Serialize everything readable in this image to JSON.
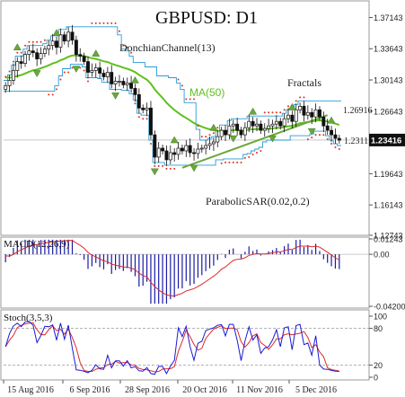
{
  "chart_data": [
    {
      "type": "candlestick",
      "title": "GBPUSD: D1",
      "instrument": "GBPUSD",
      "timeframe": "D1",
      "ylim": [
        1.1274,
        1.39
      ],
      "y_ticks": [
        "1.37143",
        "1.33643",
        "1.30143",
        "1.26643",
        "1.23143",
        "1.19643",
        "1.16143",
        "1.12743"
      ],
      "current_price_label": "1.23416",
      "current_price": 1.23416,
      "annotations": [
        {
          "text": "DonchianChannel(13)"
        },
        {
          "text": "MA(50)",
          "color": "#5fc01e"
        },
        {
          "text": "Fractals"
        },
        {
          "text": "ParabolicSAR(0.02,0.2)"
        },
        {
          "text": "1.26916",
          "value": 1.26916
        },
        {
          "text": "1.2311",
          "value": 1.2311
        }
      ],
      "x_labels": [
        "15 Aug 2016",
        "6 Sep 2016",
        "28 Sep 2016",
        "20 Oct 2016",
        "11 Nov 2016",
        "5 Dec 2016"
      ],
      "close_approx": [
        1.295,
        1.301,
        1.312,
        1.322,
        1.32,
        1.33,
        1.334,
        1.332,
        1.325,
        1.331,
        1.336,
        1.34,
        1.345,
        1.338,
        1.352,
        1.345,
        1.355,
        1.346,
        1.33,
        1.328,
        1.322,
        1.31,
        1.312,
        1.315,
        1.309,
        1.305,
        1.31,
        1.297,
        1.3,
        1.3,
        1.296,
        1.298,
        1.292,
        1.285,
        1.27,
        1.268,
        1.27,
        1.24,
        1.215,
        1.225,
        1.222,
        1.212,
        1.22,
        1.218,
        1.225,
        1.222,
        1.228,
        1.22,
        1.219,
        1.224,
        1.225,
        1.228,
        1.23,
        1.232,
        1.238,
        1.245,
        1.24,
        1.25,
        1.252,
        1.245,
        1.24,
        1.248,
        1.255,
        1.25,
        1.252,
        1.245,
        1.247,
        1.25,
        1.252,
        1.255,
        1.25,
        1.258,
        1.262,
        1.255,
        1.268,
        1.272,
        1.262,
        1.265,
        1.26,
        1.268,
        1.26,
        1.25,
        1.245,
        1.24,
        1.236,
        1.234
      ],
      "series": [
        {
          "name": "MA(50)",
          "color": "#5fc01e"
        },
        {
          "name": "DonchianChannel(13)",
          "color": "#2a9ad6"
        },
        {
          "name": "ParabolicSAR(0.02,0.2)",
          "color": "#e0321e"
        },
        {
          "name": "Fractals",
          "color": "#6aa83a"
        }
      ]
    },
    {
      "type": "bar",
      "title": "MACD(12,26,9)",
      "ylim": [
        -0.042,
        0.01243
      ],
      "y_ticks": [
        "0.01243",
        "0.00",
        "-0.04200"
      ],
      "series": [
        {
          "name": "MACD",
          "color": "#1a1aa6"
        },
        {
          "name": "Signal",
          "color": "#e02828"
        }
      ]
    },
    {
      "type": "line",
      "title": "Stoch(3,5,3)",
      "ylim": [
        0,
        100
      ],
      "y_ticks": [
        "100",
        "80",
        "20",
        "0"
      ],
      "levels": [
        80,
        20
      ],
      "series": [
        {
          "name": "%K",
          "color": "#1a1ad6"
        },
        {
          "name": "%D",
          "color": "#e02828"
        }
      ]
    }
  ]
}
